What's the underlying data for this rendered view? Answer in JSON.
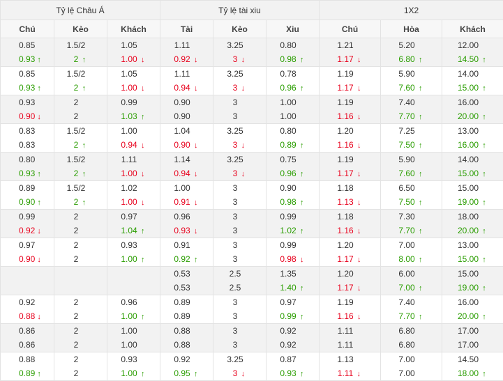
{
  "header": {
    "groups": [
      "Tỷ lệ Châu Á",
      "Tỷ lệ tài xiu",
      "1X2"
    ],
    "columns": [
      "Chú",
      "Kèo",
      "Khách",
      "Tài",
      "Kèo",
      "Xiu",
      "Chú",
      "Hòa",
      "Khách"
    ]
  },
  "colors": {
    "up": "#2a9d00",
    "down": "#e8001c",
    "alt_row": "#f2f2f2"
  },
  "rows": [
    {
      "cells": [
        {
          "top": "0.85",
          "bottom": "0.93",
          "dir": "up"
        },
        {
          "top": "1.5/2",
          "bottom": "2",
          "dir": "up"
        },
        {
          "top": "1.05",
          "bottom": "1.00",
          "dir": "down"
        },
        {
          "top": "1.11",
          "bottom": "0.92",
          "dir": "down"
        },
        {
          "top": "3.25",
          "bottom": "3",
          "dir": "down"
        },
        {
          "top": "0.80",
          "bottom": "0.98",
          "dir": "up"
        },
        {
          "top": "1.21",
          "bottom": "1.17",
          "dir": "down"
        },
        {
          "top": "5.20",
          "bottom": "6.80",
          "dir": "up"
        },
        {
          "top": "12.00",
          "bottom": "14.50",
          "dir": "up"
        }
      ]
    },
    {
      "cells": [
        {
          "top": "0.85",
          "bottom": "0.93",
          "dir": "up"
        },
        {
          "top": "1.5/2",
          "bottom": "2",
          "dir": "up"
        },
        {
          "top": "1.05",
          "bottom": "1.00",
          "dir": "down"
        },
        {
          "top": "1.11",
          "bottom": "0.94",
          "dir": "down"
        },
        {
          "top": "3.25",
          "bottom": "3",
          "dir": "down"
        },
        {
          "top": "0.78",
          "bottom": "0.96",
          "dir": "up"
        },
        {
          "top": "1.19",
          "bottom": "1.17",
          "dir": "down"
        },
        {
          "top": "5.90",
          "bottom": "7.60",
          "dir": "up"
        },
        {
          "top": "14.00",
          "bottom": "15.00",
          "dir": "up"
        }
      ]
    },
    {
      "cells": [
        {
          "top": "0.93",
          "bottom": "0.90",
          "dir": "down"
        },
        {
          "top": "2",
          "bottom": "2",
          "dir": "none"
        },
        {
          "top": "0.99",
          "bottom": "1.03",
          "dir": "up"
        },
        {
          "top": "0.90",
          "bottom": "0.90",
          "dir": "none"
        },
        {
          "top": "3",
          "bottom": "3",
          "dir": "none"
        },
        {
          "top": "1.00",
          "bottom": "1.00",
          "dir": "none"
        },
        {
          "top": "1.19",
          "bottom": "1.16",
          "dir": "down"
        },
        {
          "top": "7.40",
          "bottom": "7.70",
          "dir": "up"
        },
        {
          "top": "16.00",
          "bottom": "20.00",
          "dir": "up"
        }
      ]
    },
    {
      "cells": [
        {
          "top": "0.83",
          "bottom": "0.83",
          "dir": "none"
        },
        {
          "top": "1.5/2",
          "bottom": "2",
          "dir": "up"
        },
        {
          "top": "1.00",
          "bottom": "0.94",
          "dir": "down"
        },
        {
          "top": "1.04",
          "bottom": "0.90",
          "dir": "down"
        },
        {
          "top": "3.25",
          "bottom": "3",
          "dir": "down"
        },
        {
          "top": "0.80",
          "bottom": "0.89",
          "dir": "up"
        },
        {
          "top": "1.20",
          "bottom": "1.16",
          "dir": "down"
        },
        {
          "top": "7.25",
          "bottom": "7.50",
          "dir": "up"
        },
        {
          "top": "13.00",
          "bottom": "16.00",
          "dir": "up"
        }
      ]
    },
    {
      "cells": [
        {
          "top": "0.80",
          "bottom": "0.93",
          "dir": "up"
        },
        {
          "top": "1.5/2",
          "bottom": "2",
          "dir": "up"
        },
        {
          "top": "1.11",
          "bottom": "1.00",
          "dir": "down"
        },
        {
          "top": "1.14",
          "bottom": "0.94",
          "dir": "down"
        },
        {
          "top": "3.25",
          "bottom": "3",
          "dir": "down"
        },
        {
          "top": "0.75",
          "bottom": "0.96",
          "dir": "up"
        },
        {
          "top": "1.19",
          "bottom": "1.17",
          "dir": "down"
        },
        {
          "top": "5.90",
          "bottom": "7.60",
          "dir": "up"
        },
        {
          "top": "14.00",
          "bottom": "15.00",
          "dir": "up"
        }
      ]
    },
    {
      "cells": [
        {
          "top": "0.89",
          "bottom": "0.90",
          "dir": "up"
        },
        {
          "top": "1.5/2",
          "bottom": "2",
          "dir": "up"
        },
        {
          "top": "1.02",
          "bottom": "1.00",
          "dir": "down"
        },
        {
          "top": "1.00",
          "bottom": "0.91",
          "dir": "down"
        },
        {
          "top": "3",
          "bottom": "3",
          "dir": "none"
        },
        {
          "top": "0.90",
          "bottom": "0.98",
          "dir": "up"
        },
        {
          "top": "1.18",
          "bottom": "1.13",
          "dir": "down"
        },
        {
          "top": "6.50",
          "bottom": "7.50",
          "dir": "up"
        },
        {
          "top": "15.00",
          "bottom": "19.00",
          "dir": "up"
        }
      ]
    },
    {
      "cells": [
        {
          "top": "0.99",
          "bottom": "0.92",
          "dir": "down"
        },
        {
          "top": "2",
          "bottom": "2",
          "dir": "none"
        },
        {
          "top": "0.97",
          "bottom": "1.04",
          "dir": "up"
        },
        {
          "top": "0.96",
          "bottom": "0.93",
          "dir": "down"
        },
        {
          "top": "3",
          "bottom": "3",
          "dir": "none"
        },
        {
          "top": "0.99",
          "bottom": "1.02",
          "dir": "up"
        },
        {
          "top": "1.18",
          "bottom": "1.16",
          "dir": "down"
        },
        {
          "top": "7.30",
          "bottom": "7.70",
          "dir": "up"
        },
        {
          "top": "18.00",
          "bottom": "20.00",
          "dir": "up"
        }
      ]
    },
    {
      "cells": [
        {
          "top": "0.97",
          "bottom": "0.90",
          "dir": "down"
        },
        {
          "top": "2",
          "bottom": "2",
          "dir": "none"
        },
        {
          "top": "0.93",
          "bottom": "1.00",
          "dir": "up"
        },
        {
          "top": "0.91",
          "bottom": "0.92",
          "dir": "up"
        },
        {
          "top": "3",
          "bottom": "3",
          "dir": "none"
        },
        {
          "top": "0.99",
          "bottom": "0.98",
          "dir": "down"
        },
        {
          "top": "1.20",
          "bottom": "1.17",
          "dir": "down"
        },
        {
          "top": "7.00",
          "bottom": "8.00",
          "dir": "up"
        },
        {
          "top": "13.00",
          "bottom": "15.00",
          "dir": "up"
        }
      ]
    },
    {
      "cells": [
        {
          "top": "",
          "bottom": "",
          "dir": "none"
        },
        {
          "top": "",
          "bottom": "",
          "dir": "none"
        },
        {
          "top": "",
          "bottom": "",
          "dir": "none"
        },
        {
          "top": "0.53",
          "bottom": "0.53",
          "dir": "none"
        },
        {
          "top": "2.5",
          "bottom": "2.5",
          "dir": "none"
        },
        {
          "top": "1.35",
          "bottom": "1.40",
          "dir": "up"
        },
        {
          "top": "1.20",
          "bottom": "1.17",
          "dir": "down"
        },
        {
          "top": "6.00",
          "bottom": "7.00",
          "dir": "up"
        },
        {
          "top": "15.00",
          "bottom": "19.00",
          "dir": "up"
        }
      ]
    },
    {
      "cells": [
        {
          "top": "0.92",
          "bottom": "0.88",
          "dir": "down"
        },
        {
          "top": "2",
          "bottom": "2",
          "dir": "none"
        },
        {
          "top": "0.96",
          "bottom": "1.00",
          "dir": "up"
        },
        {
          "top": "0.89",
          "bottom": "0.89",
          "dir": "none"
        },
        {
          "top": "3",
          "bottom": "3",
          "dir": "none"
        },
        {
          "top": "0.97",
          "bottom": "0.99",
          "dir": "up"
        },
        {
          "top": "1.19",
          "bottom": "1.16",
          "dir": "down"
        },
        {
          "top": "7.40",
          "bottom": "7.70",
          "dir": "up"
        },
        {
          "top": "16.00",
          "bottom": "20.00",
          "dir": "up"
        }
      ]
    },
    {
      "cells": [
        {
          "top": "0.86",
          "bottom": "0.86",
          "dir": "none"
        },
        {
          "top": "2",
          "bottom": "2",
          "dir": "none"
        },
        {
          "top": "1.00",
          "bottom": "1.00",
          "dir": "none"
        },
        {
          "top": "0.88",
          "bottom": "0.88",
          "dir": "none"
        },
        {
          "top": "3",
          "bottom": "3",
          "dir": "none"
        },
        {
          "top": "0.92",
          "bottom": "0.92",
          "dir": "none"
        },
        {
          "top": "1.11",
          "bottom": "1.11",
          "dir": "none"
        },
        {
          "top": "6.80",
          "bottom": "6.80",
          "dir": "none"
        },
        {
          "top": "17.00",
          "bottom": "17.00",
          "dir": "none"
        }
      ]
    },
    {
      "cells": [
        {
          "top": "0.88",
          "bottom": "0.89",
          "dir": "up"
        },
        {
          "top": "2",
          "bottom": "2",
          "dir": "none"
        },
        {
          "top": "0.93",
          "bottom": "1.00",
          "dir": "up"
        },
        {
          "top": "0.92",
          "bottom": "0.95",
          "dir": "up"
        },
        {
          "top": "3.25",
          "bottom": "3",
          "dir": "down"
        },
        {
          "top": "0.87",
          "bottom": "0.93",
          "dir": "up"
        },
        {
          "top": "1.13",
          "bottom": "1.11",
          "dir": "down"
        },
        {
          "top": "7.00",
          "bottom": "7.00",
          "dir": "none"
        },
        {
          "top": "14.50",
          "bottom": "18.00",
          "dir": "up"
        }
      ]
    }
  ]
}
